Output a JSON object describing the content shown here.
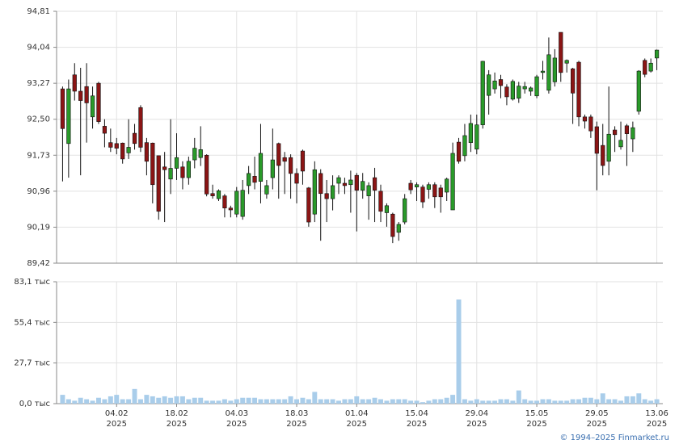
{
  "credit": "© 1994–2025 Finmarket.ru",
  "chart_data": [
    {
      "type": "candlestick",
      "up_color": "#2a9a2a",
      "down_color": "#8b1515",
      "ylim": [
        89.42,
        94.81
      ],
      "yticks": [
        {
          "value": 89.42,
          "label": "89,42"
        },
        {
          "value": 90.19,
          "label": "90,19"
        },
        {
          "value": 90.96,
          "label": "90,96"
        },
        {
          "value": 91.73,
          "label": "91,73"
        },
        {
          "value": 92.5,
          "label": "92,50"
        },
        {
          "value": 93.27,
          "label": "93,27"
        },
        {
          "value": 94.04,
          "label": "94,04"
        },
        {
          "value": 94.81,
          "label": "94,81"
        }
      ],
      "grid": true,
      "open": [
        93.15,
        91.98,
        93.45,
        93.1,
        93.2,
        92.55,
        93.27,
        92.35,
        92.0,
        91.98,
        91.99,
        91.78,
        92.2,
        92.75,
        92.0,
        91.99,
        91.72,
        91.48,
        91.22,
        91.45,
        91.48,
        91.25,
        91.63,
        91.68,
        91.73,
        90.91,
        90.8,
        90.86,
        90.6,
        90.47,
        90.42,
        91.08,
        91.28,
        91.17,
        90.9,
        91.25,
        91.98,
        91.68,
        91.68,
        91.34,
        91.82,
        91.03,
        90.47,
        91.34,
        90.91,
        90.8,
        91.13,
        91.13,
        91.1,
        91.3,
        90.98,
        90.86,
        91.25,
        90.96,
        90.5,
        90.47,
        90.08,
        90.3,
        91.13,
        91.05,
        91.05,
        91.0,
        91.1,
        91.03,
        90.94,
        90.56,
        92.01,
        91.72,
        92.0,
        91.86,
        92.38,
        93.01,
        93.15,
        93.35,
        93.19,
        92.93,
        92.95,
        93.15,
        93.1,
        93.0,
        93.5,
        93.12,
        93.3,
        94.36,
        93.7,
        93.58,
        93.72,
        92.55,
        92.55,
        92.34,
        91.94,
        91.6,
        92.27,
        91.91,
        92.36,
        92.08,
        92.67,
        93.76,
        93.53,
        93.81
      ],
      "high": [
        93.2,
        93.35,
        93.7,
        93.6,
        93.7,
        93.2,
        93.3,
        92.5,
        92.3,
        92.1,
        92.0,
        92.5,
        92.4,
        92.8,
        92.1,
        92.0,
        91.72,
        91.8,
        92.5,
        92.2,
        91.6,
        91.7,
        92.1,
        92.35,
        91.75,
        91.1,
        91.0,
        90.9,
        90.65,
        91.05,
        91.2,
        91.5,
        91.7,
        92.4,
        91.2,
        92.3,
        92.0,
        91.8,
        91.75,
        91.45,
        91.85,
        91.05,
        91.6,
        91.43,
        91.2,
        91.3,
        91.3,
        91.25,
        91.4,
        91.35,
        91.35,
        91.15,
        91.46,
        91.1,
        90.7,
        90.5,
        90.3,
        90.9,
        91.2,
        91.15,
        91.1,
        91.15,
        91.15,
        91.1,
        91.25,
        92.0,
        92.1,
        92.4,
        92.6,
        92.6,
        93.75,
        93.55,
        93.5,
        93.45,
        93.25,
        93.35,
        93.3,
        93.3,
        93.2,
        93.45,
        93.75,
        94.25,
        94.0,
        94.36,
        93.78,
        93.6,
        93.75,
        92.6,
        92.6,
        92.45,
        92.4,
        93.2,
        92.35,
        92.45,
        92.4,
        92.45,
        93.55,
        93.8,
        93.8,
        93.99
      ],
      "low": [
        91.17,
        91.25,
        92.9,
        91.3,
        92.0,
        92.3,
        92.4,
        91.9,
        91.8,
        91.75,
        91.55,
        91.65,
        91.85,
        91.8,
        91.3,
        90.7,
        90.35,
        90.3,
        90.9,
        91.2,
        91.0,
        91.1,
        91.45,
        91.5,
        90.85,
        90.8,
        90.75,
        90.4,
        90.4,
        90.4,
        90.35,
        90.9,
        91.0,
        90.7,
        90.8,
        91.0,
        90.8,
        90.9,
        90.8,
        90.7,
        91.1,
        90.2,
        90.3,
        89.9,
        90.3,
        90.55,
        90.9,
        90.9,
        90.5,
        90.1,
        90.8,
        90.35,
        90.3,
        90.3,
        90.2,
        89.85,
        89.9,
        90.25,
        90.9,
        90.75,
        90.6,
        90.8,
        90.6,
        90.5,
        90.75,
        90.56,
        91.55,
        91.6,
        91.8,
        91.75,
        92.3,
        92.6,
        93.05,
        92.95,
        92.8,
        92.9,
        92.85,
        93.05,
        93.0,
        92.95,
        93.35,
        93.05,
        93.2,
        93.3,
        93.5,
        92.4,
        92.35,
        92.3,
        92.1,
        90.98,
        91.3,
        91.3,
        91.8,
        91.85,
        91.5,
        91.8,
        92.6,
        93.4,
        93.5,
        93.55
      ],
      "close": [
        92.3,
        93.15,
        93.1,
        92.9,
        92.85,
        93.0,
        92.45,
        92.2,
        91.9,
        91.88,
        91.65,
        91.9,
        91.98,
        91.9,
        91.6,
        91.1,
        90.53,
        91.42,
        91.45,
        91.68,
        91.25,
        91.6,
        91.88,
        91.85,
        90.9,
        90.86,
        90.97,
        90.6,
        90.56,
        90.96,
        90.98,
        91.34,
        91.15,
        91.77,
        91.08,
        91.63,
        91.51,
        91.6,
        91.34,
        91.13,
        91.39,
        90.3,
        91.42,
        90.91,
        90.8,
        91.08,
        91.25,
        91.08,
        91.2,
        90.98,
        91.17,
        91.08,
        90.98,
        90.53,
        90.65,
        89.99,
        90.25,
        90.8,
        90.99,
        91.1,
        90.73,
        91.1,
        90.84,
        90.84,
        91.22,
        91.77,
        91.6,
        92.15,
        92.41,
        92.38,
        93.74,
        93.45,
        93.32,
        93.22,
        92.98,
        93.31,
        93.21,
        93.2,
        93.17,
        93.41,
        93.53,
        93.88,
        93.81,
        93.5,
        93.76,
        93.06,
        92.55,
        92.46,
        92.25,
        91.77,
        91.51,
        92.18,
        92.17,
        92.05,
        92.19,
        92.32,
        93.53,
        93.46,
        93.7,
        93.98
      ]
    },
    {
      "type": "bar",
      "color": "#a9cdea",
      "ylim": [
        0,
        83.1
      ],
      "yticks": [
        {
          "value": 0,
          "label": "0,0 тыс"
        },
        {
          "value": 27.7,
          "label": "27,7 тыс"
        },
        {
          "value": 55.4,
          "label": "55,4 тыс"
        },
        {
          "value": 83.1,
          "label": "83,1 тыс"
        }
      ],
      "grid": true,
      "x_sublabel": "2025",
      "categories": [
        null,
        null,
        null,
        null,
        null,
        null,
        null,
        null,
        null,
        "04.02",
        null,
        null,
        null,
        null,
        null,
        null,
        null,
        null,
        null,
        "18.02",
        null,
        null,
        null,
        null,
        null,
        null,
        null,
        null,
        null,
        "04.03",
        null,
        null,
        null,
        null,
        null,
        null,
        null,
        null,
        null,
        "18.03",
        null,
        null,
        null,
        null,
        null,
        null,
        null,
        null,
        null,
        "01.04",
        null,
        null,
        null,
        null,
        null,
        null,
        null,
        null,
        null,
        "15.04",
        null,
        null,
        null,
        null,
        null,
        null,
        null,
        null,
        null,
        "29.04",
        null,
        null,
        null,
        null,
        null,
        null,
        null,
        null,
        null,
        "15.05",
        null,
        null,
        null,
        null,
        null,
        null,
        null,
        null,
        null,
        "29.05",
        null,
        null,
        null,
        null,
        null,
        null,
        null,
        null,
        null,
        "13.06"
      ],
      "values": [
        6,
        3,
        2,
        4,
        3,
        2,
        4,
        3,
        5,
        6,
        3,
        3,
        10,
        3,
        6,
        5,
        4,
        5,
        4,
        5,
        5,
        3,
        4,
        4,
        2,
        2,
        2,
        3,
        2,
        3,
        4,
        4,
        4,
        3,
        3,
        3,
        3,
        3,
        5,
        3,
        4,
        3,
        8,
        3,
        3,
        3,
        2,
        3,
        3,
        5,
        3,
        3,
        4,
        3,
        2,
        3,
        3,
        3,
        2,
        2,
        1,
        2,
        3,
        3,
        4,
        6,
        71,
        3,
        2,
        3,
        2,
        2,
        2,
        3,
        3,
        2,
        9,
        3,
        2,
        2,
        3,
        3,
        2,
        2,
        2,
        3,
        3,
        4,
        4,
        3,
        7,
        3,
        3,
        2,
        5,
        5,
        7,
        3,
        2,
        3
      ]
    }
  ]
}
